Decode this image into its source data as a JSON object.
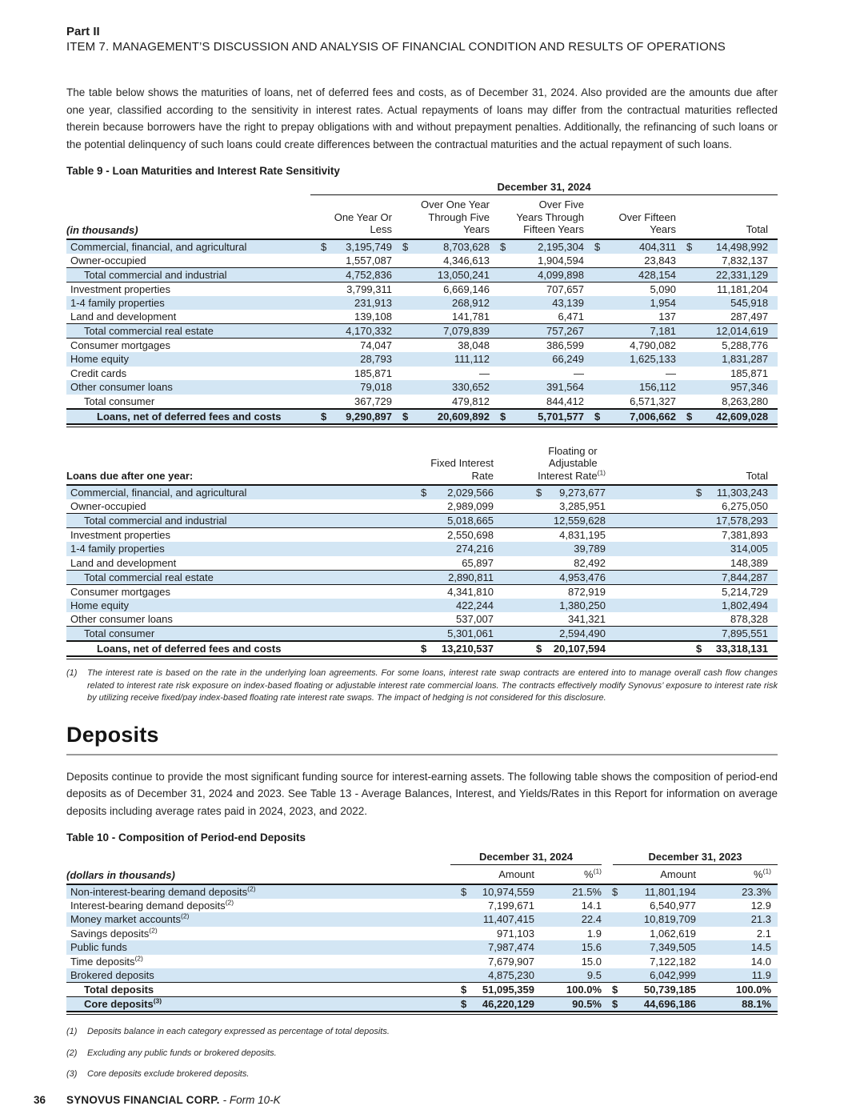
{
  "page": {
    "part_label": "Part II",
    "item_heading": "ITEM 7. MANAGEMENT’S DISCUSSION AND ANALYSIS OF FINANCIAL CONDITION AND RESULTS OF OPERATIONS",
    "intro_paragraph": "The table below shows the maturities of loans, net of deferred fees and costs, as of December 31, 2024. Also provided are the amounts due after one year, classified according to the sensitivity in interest rates. Actual repayments of loans may differ from the contractual maturities reflected therein because borrowers have the right to prepay obligations with and without prepayment penalties. Additionally, the refinancing of such loans or the potential delinquency of such loans could create differences between the contractual maturities and the actual repayment of such loans.",
    "footer": {
      "page_number": "36",
      "company": "SYNOVUS FINANCIAL CORP.",
      "form_suffix": "- Form 10-K"
    },
    "colors": {
      "row_shade": "#d3e6f4",
      "rule": "#141414",
      "heading_rule": "#9a9a9a"
    }
  },
  "table9": {
    "title": "Table 9 - Loan Maturities and Interest Rate Sensitivity",
    "date_span_header": "December 31, 2024",
    "unit_label": "(in thousands)",
    "col_headers": [
      {
        "text": "One Year Or\nLess"
      },
      {
        "text": "Over One Year\nThrough Five\nYears"
      },
      {
        "text": "Over Five\nYears Through\nFifteen Years"
      },
      {
        "text": "Over Fifteen\nYears"
      },
      {
        "text": "Total"
      }
    ],
    "rows": [
      {
        "label": "Commercial, financial, and agricultural",
        "shade": true,
        "dollar": true,
        "values": [
          "3,195,749",
          "8,703,628",
          "2,195,304",
          "404,311",
          "14,498,992"
        ]
      },
      {
        "label": "Owner-occupied",
        "values": [
          "1,557,087",
          "4,346,613",
          "1,904,594",
          "23,843",
          "7,832,137"
        ]
      },
      {
        "label": "Total commercial and industrial",
        "ind": 1,
        "shade": true,
        "rt": true,
        "rb": true,
        "values": [
          "4,752,836",
          "13,050,241",
          "4,099,898",
          "428,154",
          "22,331,129"
        ]
      },
      {
        "label": "Investment properties",
        "values": [
          "3,799,311",
          "6,669,146",
          "707,657",
          "5,090",
          "11,181,204"
        ]
      },
      {
        "label": "1-4 family properties",
        "shade": true,
        "values": [
          "231,913",
          "268,912",
          "43,139",
          "1,954",
          "545,918"
        ]
      },
      {
        "label": "Land and development",
        "values": [
          "139,108",
          "141,781",
          "6,471",
          "137",
          "287,497"
        ]
      },
      {
        "label": "Total commercial real estate",
        "ind": 1,
        "shade": true,
        "rt": true,
        "rb": true,
        "values": [
          "4,170,332",
          "7,079,839",
          "757,267",
          "7,181",
          "12,014,619"
        ]
      },
      {
        "label": "Consumer mortgages",
        "values": [
          "74,047",
          "38,048",
          "386,599",
          "4,790,082",
          "5,288,776"
        ]
      },
      {
        "label": "Home equity",
        "shade": true,
        "values": [
          "28,793",
          "111,112",
          "66,249",
          "1,625,133",
          "1,831,287"
        ]
      },
      {
        "label": "Credit cards",
        "values": [
          "185,871",
          "—",
          "—",
          "—",
          "185,871"
        ]
      },
      {
        "label": "Other consumer loans",
        "shade": true,
        "values": [
          "79,018",
          "330,652",
          "391,564",
          "156,112",
          "957,346"
        ]
      },
      {
        "label": "Total consumer",
        "ind": 1,
        "values": [
          "367,729",
          "479,812",
          "844,412",
          "6,571,327",
          "8,263,280"
        ]
      },
      {
        "label": "Loans, net of deferred fees and costs",
        "ind": 2,
        "bold": true,
        "shade": true,
        "tt": true,
        "db": true,
        "dollar": true,
        "values": [
          "9,290,897",
          "20,609,892",
          "5,701,577",
          "7,006,662",
          "42,609,028"
        ]
      }
    ]
  },
  "loans_after_table": {
    "row_header": "Loans due after one year:",
    "col_headers": [
      {
        "text": "Fixed Interest\nRate"
      },
      {
        "text": "Floating or\nAdjustable\nInterest Rate",
        "sup": "(1)"
      },
      {
        "text": "Total"
      }
    ],
    "rows": [
      {
        "label": "Commercial, financial, and agricultural",
        "shade": true,
        "dollar": true,
        "values": [
          "2,029,566",
          "9,273,677",
          "11,303,243"
        ]
      },
      {
        "label": "Owner-occupied",
        "values": [
          "2,989,099",
          "3,285,951",
          "6,275,050"
        ]
      },
      {
        "label": "Total commercial and industrial",
        "ind": 1,
        "shade": true,
        "rt": true,
        "rb": true,
        "values": [
          "5,018,665",
          "12,559,628",
          "17,578,293"
        ]
      },
      {
        "label": "Investment properties",
        "values": [
          "2,550,698",
          "4,831,195",
          "7,381,893"
        ]
      },
      {
        "label": "1-4 family properties",
        "shade": true,
        "values": [
          "274,216",
          "39,789",
          "314,005"
        ]
      },
      {
        "label": "Land and development",
        "values": [
          "65,897",
          "82,492",
          "148,389"
        ]
      },
      {
        "label": "Total commercial real estate",
        "ind": 1,
        "shade": true,
        "rt": true,
        "rb": true,
        "values": [
          "2,890,811",
          "4,953,476",
          "7,844,287"
        ]
      },
      {
        "label": "Consumer mortgages",
        "values": [
          "4,341,810",
          "872,919",
          "5,214,729"
        ]
      },
      {
        "label": "Home equity",
        "shade": true,
        "values": [
          "422,244",
          "1,380,250",
          "1,802,494"
        ]
      },
      {
        "label": "Other consumer loans",
        "values": [
          "537,007",
          "341,321",
          "878,328"
        ]
      },
      {
        "label": "Total consumer",
        "ind": 1,
        "shade": true,
        "rt": true,
        "values": [
          "5,301,061",
          "2,594,490",
          "7,895,551"
        ]
      },
      {
        "label": "Loans, net of deferred fees and costs",
        "ind": 2,
        "bold": true,
        "tt": true,
        "db": true,
        "dollar": true,
        "values": [
          "13,210,537",
          "20,107,594",
          "33,318,131"
        ]
      }
    ],
    "footnote": {
      "marker": "(1)",
      "text": "The interest rate is based on the rate in the underlying loan agreements. For some loans, interest rate swap contracts are entered into to manage overall cash flow changes related to interest rate risk exposure on index-based floating or adjustable interest rate commercial loans. The contracts effectively modify Synovus’ exposure to interest rate risk by utilizing receive fixed/pay index-based floating rate interest rate swaps. The impact of hedging is not considered for this disclosure."
    }
  },
  "deposits_section": {
    "heading": "Deposits",
    "paragraph": "Deposits continue to provide the most significant funding source for interest-earning assets. The following table shows the composition of period-end deposits as of December 31, 2024 and 2023. See Table 13 - Average Balances, Interest, and Yields/Rates in this Report for information on average deposits including average rates paid in 2024, 2023, and 2022.",
    "table10": {
      "title": "Table 10 - Composition of Period-end Deposits",
      "unit_label": "(dollars in thousands)",
      "period_headers": [
        "December 31, 2024",
        "December 31, 2023"
      ],
      "col_headers": [
        {
          "text": "Amount"
        },
        {
          "text": "%",
          "sup": "(1)"
        },
        {
          "text": "Amount"
        },
        {
          "text": "%",
          "sup": "(1)"
        }
      ],
      "rows": [
        {
          "label": "Non-interest-bearing demand deposits",
          "sup": "(2)",
          "shade": true,
          "dollar": true,
          "values": [
            "10,974,559",
            "21.5%",
            "11,801,194",
            "23.3%"
          ]
        },
        {
          "label": "Interest-bearing demand deposits",
          "sup": "(2)",
          "values": [
            "7,199,671",
            "14.1",
            "6,540,977",
            "12.9"
          ]
        },
        {
          "label": "Money market accounts",
          "sup": "(2)",
          "shade": true,
          "values": [
            "11,407,415",
            "22.4",
            "10,819,709",
            "21.3"
          ]
        },
        {
          "label": "Savings deposits",
          "sup": "(2)",
          "values": [
            "971,103",
            "1.9",
            "1,062,619",
            "2.1"
          ]
        },
        {
          "label": "Public funds",
          "shade": true,
          "values": [
            "7,987,474",
            "15.6",
            "7,349,505",
            "14.5"
          ]
        },
        {
          "label": "Time deposits",
          "sup": "(2)",
          "values": [
            "7,679,907",
            "15.0",
            "7,122,182",
            "14.0"
          ]
        },
        {
          "label": "Brokered deposits",
          "shade": true,
          "values": [
            "4,875,230",
            "9.5",
            "6,042,999",
            "11.9"
          ]
        },
        {
          "label": "Total deposits",
          "ind": 1,
          "bold": true,
          "rt": true,
          "dollar": true,
          "values": [
            "51,095,359",
            "100.0%",
            "50,739,185",
            "100.0%"
          ]
        },
        {
          "label": "Core deposits",
          "sup": "(3)",
          "ind": 1,
          "bold": true,
          "shade": true,
          "rt": true,
          "db": true,
          "dollar": true,
          "values": [
            "46,220,129",
            "90.5%",
            "44,696,186",
            "88.1%"
          ]
        }
      ],
      "footnotes": [
        {
          "marker": "(1)",
          "text": "Deposits balance in each category expressed as percentage of total deposits."
        },
        {
          "marker": "(2)",
          "text": "Excluding any public funds or brokered deposits."
        },
        {
          "marker": "(3)",
          "text": "Core deposits exclude brokered deposits."
        }
      ]
    }
  }
}
